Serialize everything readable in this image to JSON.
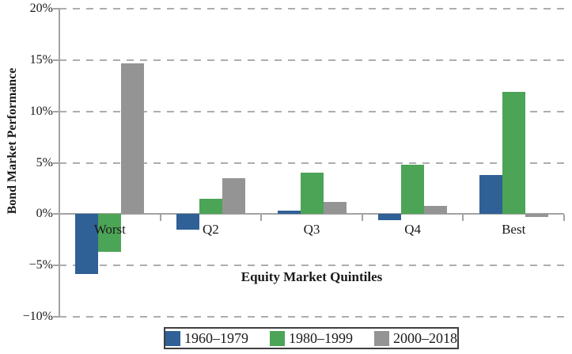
{
  "chart_data": {
    "type": "bar",
    "title": "",
    "xlabel": "Equity Market Quintiles",
    "ylabel": "Bond Market Performance",
    "categories": [
      "Worst",
      "Q2",
      "Q3",
      "Q4",
      "Best"
    ],
    "series": [
      {
        "name": "1960–1979",
        "color": "#2F6096",
        "values": [
          -5.8,
          -1.5,
          0.3,
          -0.6,
          3.8
        ]
      },
      {
        "name": "1980–1999",
        "color": "#4CA456",
        "values": [
          -3.7,
          1.5,
          4.0,
          4.8,
          11.9
        ]
      },
      {
        "name": "2000–2018",
        "color": "#949494",
        "values": [
          14.7,
          3.5,
          1.2,
          0.8,
          -0.3
        ]
      }
    ],
    "ylim": [
      -10,
      20
    ],
    "ytick_step": 5,
    "ytick_labels": [
      "20%",
      "15%",
      "10%",
      "5%",
      "0%",
      "−5%",
      "−10%"
    ],
    "grid": "horizontal-dashed",
    "legend_position": "bottom"
  },
  "colors": {
    "axis": "#A3A3A3",
    "gridline": "#ADADAD",
    "text": "#1A1A1A",
    "legend_border": "#3F3F3F"
  }
}
